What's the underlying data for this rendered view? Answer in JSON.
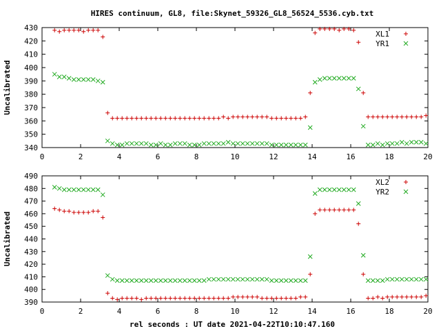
{
  "title": "HIRES continuum, GL8, file:Skynet_59326_GL8_56524_5536.cyb.txt",
  "xlabel": "rel seconds : UT date 2021-04-22T10:10:47.160",
  "colors": {
    "xl": "#cc0000",
    "yr": "#22aa22",
    "axis": "#000000"
  },
  "chart_data": [
    {
      "type": "scatter",
      "ylabel": "Uncalibrated",
      "xlim": [
        0,
        20
      ],
      "ylim": [
        340,
        430
      ],
      "xticks": [
        0,
        2,
        4,
        6,
        8,
        10,
        12,
        14,
        16,
        18,
        20
      ],
      "yticks": [
        340,
        350,
        360,
        370,
        380,
        390,
        400,
        410,
        420,
        430
      ],
      "legend_position": "top-right",
      "series": [
        {
          "name": "XL1",
          "marker": "plus",
          "color": "#cc0000",
          "x": [
            0.65,
            0.9,
            1.15,
            1.4,
            1.65,
            1.9,
            2.15,
            2.4,
            2.65,
            2.9,
            3.15,
            3.4,
            3.65,
            3.9,
            4.15,
            4.4,
            4.65,
            4.9,
            5.15,
            5.4,
            5.65,
            5.9,
            6.15,
            6.4,
            6.65,
            6.9,
            7.15,
            7.4,
            7.65,
            7.9,
            8.15,
            8.4,
            8.65,
            8.9,
            9.15,
            9.4,
            9.65,
            9.9,
            10.15,
            10.4,
            10.65,
            10.9,
            11.15,
            11.4,
            11.65,
            11.9,
            12.15,
            12.4,
            12.65,
            12.9,
            13.15,
            13.4,
            13.65,
            13.9,
            14.15,
            14.4,
            14.65,
            14.9,
            15.15,
            15.4,
            15.65,
            15.9,
            16.15,
            16.4,
            16.65,
            16.9,
            17.15,
            17.4,
            17.65,
            17.9,
            18.15,
            18.4,
            18.65,
            18.9,
            19.15,
            19.4,
            19.65,
            19.9
          ],
          "y": [
            428,
            427,
            428,
            428,
            428,
            428,
            427,
            428,
            428,
            428,
            423,
            366,
            362,
            362,
            362,
            362,
            362,
            362,
            362,
            362,
            362,
            362,
            362,
            362,
            362,
            362,
            362,
            362,
            362,
            362,
            362,
            362,
            362,
            362,
            362,
            363,
            362,
            363,
            363,
            363,
            363,
            363,
            363,
            363,
            363,
            362,
            362,
            362,
            362,
            362,
            362,
            362,
            363,
            381,
            426,
            429,
            429,
            429,
            429,
            428,
            429,
            429,
            428,
            419,
            381,
            363,
            363,
            363,
            363,
            363,
            363,
            363,
            363,
            363,
            363,
            363,
            363,
            364
          ]
        },
        {
          "name": "YR1",
          "marker": "cross",
          "color": "#22aa22",
          "x": [
            0.65,
            0.9,
            1.15,
            1.4,
            1.65,
            1.9,
            2.15,
            2.4,
            2.65,
            2.9,
            3.15,
            3.4,
            3.65,
            3.9,
            4.15,
            4.4,
            4.65,
            4.9,
            5.15,
            5.4,
            5.65,
            5.9,
            6.15,
            6.4,
            6.65,
            6.9,
            7.15,
            7.4,
            7.65,
            7.9,
            8.15,
            8.4,
            8.65,
            8.9,
            9.15,
            9.4,
            9.65,
            9.9,
            10.15,
            10.4,
            10.65,
            10.9,
            11.15,
            11.4,
            11.65,
            11.9,
            12.15,
            12.4,
            12.65,
            12.9,
            13.15,
            13.4,
            13.65,
            13.9,
            14.15,
            14.4,
            14.65,
            14.9,
            15.15,
            15.4,
            15.65,
            15.9,
            16.15,
            16.4,
            16.65,
            16.9,
            17.15,
            17.4,
            17.65,
            17.9,
            18.15,
            18.4,
            18.65,
            18.9,
            19.15,
            19.4,
            19.65,
            19.9
          ],
          "y": [
            395,
            393,
            393,
            392,
            391,
            391,
            391,
            391,
            391,
            390,
            389,
            345,
            343,
            342,
            342,
            343,
            343,
            343,
            343,
            343,
            342,
            342,
            343,
            342,
            342,
            343,
            343,
            343,
            342,
            342,
            342,
            343,
            343,
            343,
            343,
            343,
            344,
            343,
            343,
            343,
            343,
            343,
            343,
            343,
            343,
            342,
            342,
            342,
            342,
            342,
            342,
            342,
            342,
            355,
            389,
            391,
            392,
            392,
            392,
            392,
            392,
            392,
            392,
            384,
            356,
            342,
            342,
            343,
            342,
            343,
            343,
            343,
            344,
            343,
            344,
            344,
            344,
            343
          ]
        }
      ]
    },
    {
      "type": "scatter",
      "ylabel": "Uncalibrated",
      "xlim": [
        0,
        20
      ],
      "ylim": [
        390,
        490
      ],
      "xticks": [
        0,
        2,
        4,
        6,
        8,
        10,
        12,
        14,
        16,
        18,
        20
      ],
      "yticks": [
        390,
        400,
        410,
        420,
        430,
        440,
        450,
        460,
        470,
        480,
        490
      ],
      "legend_position": "top-right",
      "series": [
        {
          "name": "XL2",
          "marker": "plus",
          "color": "#cc0000",
          "x": [
            0.65,
            0.9,
            1.15,
            1.4,
            1.65,
            1.9,
            2.15,
            2.4,
            2.65,
            2.9,
            3.15,
            3.4,
            3.65,
            3.9,
            4.15,
            4.4,
            4.65,
            4.9,
            5.15,
            5.4,
            5.65,
            5.9,
            6.15,
            6.4,
            6.65,
            6.9,
            7.15,
            7.4,
            7.65,
            7.9,
            8.15,
            8.4,
            8.65,
            8.9,
            9.15,
            9.4,
            9.65,
            9.9,
            10.15,
            10.4,
            10.65,
            10.9,
            11.15,
            11.4,
            11.65,
            11.9,
            12.15,
            12.4,
            12.65,
            12.9,
            13.15,
            13.4,
            13.65,
            13.9,
            14.15,
            14.4,
            14.65,
            14.9,
            15.15,
            15.4,
            15.65,
            15.9,
            16.15,
            16.4,
            16.65,
            16.9,
            17.15,
            17.4,
            17.65,
            17.9,
            18.15,
            18.4,
            18.65,
            18.9,
            19.15,
            19.4,
            19.65,
            19.9
          ],
          "y": [
            464,
            463,
            462,
            462,
            461,
            461,
            461,
            461,
            462,
            462,
            457,
            397,
            393,
            392,
            393,
            393,
            393,
            393,
            392,
            393,
            393,
            393,
            393,
            393,
            393,
            393,
            393,
            393,
            393,
            393,
            393,
            393,
            393,
            393,
            393,
            393,
            393,
            394,
            394,
            394,
            394,
            394,
            394,
            393,
            393,
            393,
            393,
            393,
            393,
            393,
            393,
            394,
            394,
            412,
            460,
            463,
            463,
            463,
            463,
            463,
            463,
            463,
            463,
            452,
            412,
            393,
            393,
            394,
            393,
            394,
            394,
            394,
            394,
            394,
            394,
            394,
            394,
            395
          ]
        },
        {
          "name": "YR2",
          "marker": "cross",
          "color": "#22aa22",
          "x": [
            0.65,
            0.9,
            1.15,
            1.4,
            1.65,
            1.9,
            2.15,
            2.4,
            2.65,
            2.9,
            3.15,
            3.4,
            3.65,
            3.9,
            4.15,
            4.4,
            4.65,
            4.9,
            5.15,
            5.4,
            5.65,
            5.9,
            6.15,
            6.4,
            6.65,
            6.9,
            7.15,
            7.4,
            7.65,
            7.9,
            8.15,
            8.4,
            8.65,
            8.9,
            9.15,
            9.4,
            9.65,
            9.9,
            10.15,
            10.4,
            10.65,
            10.9,
            11.15,
            11.4,
            11.65,
            11.9,
            12.15,
            12.4,
            12.65,
            12.9,
            13.15,
            13.4,
            13.65,
            13.9,
            14.15,
            14.4,
            14.65,
            14.9,
            15.15,
            15.4,
            15.65,
            15.9,
            16.15,
            16.4,
            16.65,
            16.9,
            17.15,
            17.4,
            17.65,
            17.9,
            18.15,
            18.4,
            18.65,
            18.9,
            19.15,
            19.4,
            19.65,
            19.9
          ],
          "y": [
            481,
            480,
            479,
            479,
            479,
            479,
            479,
            479,
            479,
            479,
            475,
            411,
            408,
            407,
            407,
            407,
            407,
            407,
            407,
            407,
            407,
            407,
            407,
            407,
            407,
            407,
            407,
            407,
            407,
            407,
            407,
            407,
            408,
            408,
            408,
            408,
            408,
            408,
            408,
            408,
            408,
            408,
            408,
            408,
            408,
            407,
            407,
            407,
            407,
            407,
            407,
            407,
            407,
            426,
            476,
            479,
            479,
            479,
            479,
            479,
            479,
            479,
            479,
            468,
            427,
            407,
            407,
            407,
            407,
            408,
            408,
            408,
            408,
            408,
            408,
            408,
            408,
            408
          ]
        }
      ]
    }
  ]
}
